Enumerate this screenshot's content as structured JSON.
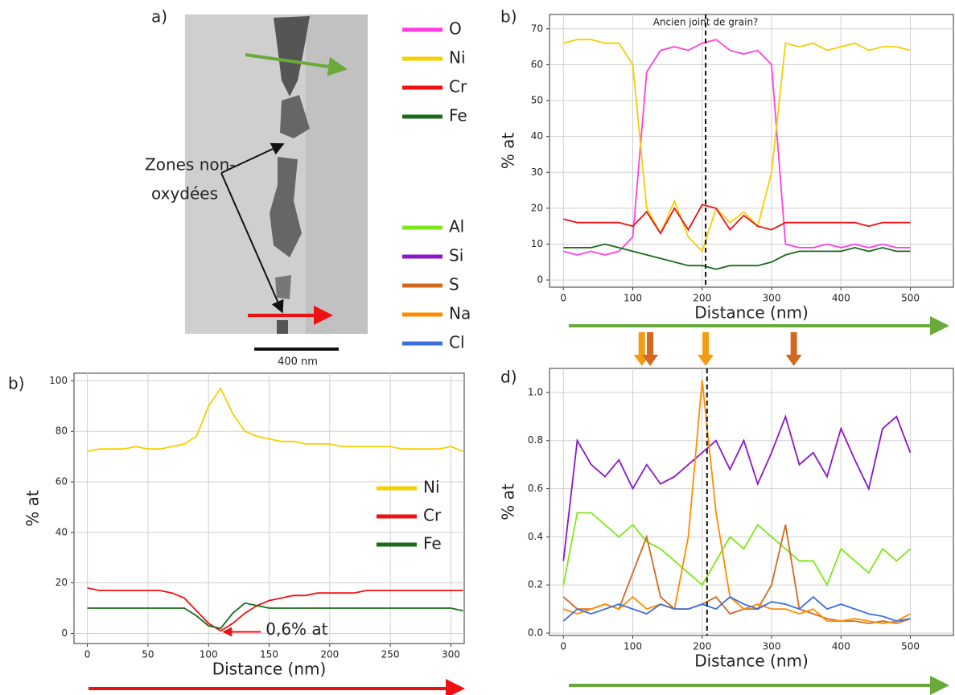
{
  "image_panel": {
    "label": "a)",
    "annotation_line1": "Zones non-",
    "annotation_line2": "oxydées",
    "scale_bar": "400 nm"
  },
  "chart_data": [
    {
      "type": "line",
      "panel": "b)",
      "vline": 205,
      "vline_label": "Ancien joint de grain?",
      "xlabel": "Distance (nm)",
      "ylabel": "% at",
      "x": [
        0,
        20,
        40,
        60,
        80,
        100,
        120,
        140,
        160,
        180,
        200,
        220,
        240,
        260,
        280,
        300,
        320,
        340,
        360,
        380,
        400,
        420,
        440,
        460,
        480,
        500
      ],
      "series": [
        {
          "name": "O",
          "color": "#ff3fe0",
          "values": [
            8,
            7,
            8,
            7,
            8,
            12,
            58,
            64,
            65,
            64,
            66,
            67,
            64,
            63,
            64,
            60,
            10,
            9,
            9,
            10,
            9,
            10,
            9,
            10,
            9,
            9
          ]
        },
        {
          "name": "Ni",
          "color": "#f5cf00",
          "values": [
            66,
            67,
            67,
            66,
            66,
            60,
            20,
            13,
            22,
            12,
            8,
            20,
            16,
            19,
            15,
            30,
            66,
            65,
            66,
            64,
            65,
            66,
            64,
            65,
            65,
            64
          ]
        },
        {
          "name": "Cr",
          "color": "#ee1111",
          "values": [
            17,
            16,
            16,
            16,
            16,
            15,
            19,
            13,
            20,
            14,
            21,
            20,
            14,
            18,
            15,
            14,
            16,
            16,
            16,
            16,
            16,
            16,
            15,
            16,
            16,
            16
          ]
        },
        {
          "name": "Fe",
          "color": "#1a6b1a",
          "values": [
            9,
            9,
            9,
            10,
            9,
            8,
            7,
            6,
            5,
            4,
            4,
            3,
            4,
            4,
            4,
            5,
            7,
            8,
            8,
            8,
            8,
            9,
            8,
            9,
            8,
            8
          ]
        }
      ],
      "xlim": [
        -20,
        562
      ],
      "ylim": [
        -2,
        74
      ],
      "xticks": [
        0,
        100,
        200,
        300,
        400,
        500
      ],
      "yticks": [
        0,
        10,
        20,
        30,
        40,
        50,
        60,
        70
      ],
      "grid": true,
      "legend": "left"
    },
    {
      "type": "line",
      "panel": "b)",
      "xlabel": "Distance (nm)",
      "ylabel": "% at",
      "annotation": {
        "text": "0,6% at",
        "x": 110,
        "y": 0.6,
        "color": "#ee1111"
      },
      "x": [
        0,
        10,
        20,
        30,
        40,
        50,
        60,
        70,
        80,
        90,
        100,
        110,
        120,
        130,
        140,
        150,
        160,
        170,
        180,
        190,
        200,
        210,
        220,
        230,
        240,
        250,
        260,
        270,
        280,
        290,
        300,
        310
      ],
      "series": [
        {
          "name": "Ni",
          "color": "#f5cf00",
          "values": [
            72,
            73,
            73,
            73,
            74,
            73,
            73,
            74,
            75,
            78,
            90,
            97,
            87,
            80,
            78,
            77,
            76,
            76,
            75,
            75,
            75,
            74,
            74,
            74,
            74,
            74,
            73,
            73,
            73,
            73,
            74,
            72
          ]
        },
        {
          "name": "Cr",
          "color": "#ee1111",
          "values": [
            18,
            17,
            17,
            17,
            17,
            17,
            17,
            16,
            14,
            9,
            4,
            1,
            4,
            8,
            11,
            13,
            14,
            15,
            15,
            16,
            16,
            16,
            16,
            17,
            17,
            17,
            17,
            17,
            17,
            17,
            17,
            17
          ]
        },
        {
          "name": "Fe",
          "color": "#1a6b1a",
          "values": [
            10,
            10,
            10,
            10,
            10,
            10,
            10,
            10,
            10,
            7,
            3,
            2,
            8,
            12,
            11,
            10,
            10,
            10,
            10,
            10,
            10,
            10,
            10,
            10,
            10,
            10,
            10,
            10,
            10,
            10,
            10,
            9
          ]
        }
      ],
      "xlim": [
        -11,
        311
      ],
      "ylim": [
        -4,
        103
      ],
      "xticks": [
        0,
        50,
        100,
        150,
        200,
        250,
        300
      ],
      "yticks": [
        0,
        20,
        40,
        60,
        80,
        100
      ],
      "grid": true,
      "legend": "right"
    },
    {
      "type": "line",
      "panel": "d)",
      "vline": 207,
      "xlabel": "Distance (nm)",
      "ylabel": "% at",
      "markers": [
        {
          "x": 113,
          "color": "#f39c12"
        },
        {
          "x": 125,
          "color": "#d2691e"
        },
        {
          "x": 205,
          "color": "#f39c12"
        },
        {
          "x": 332,
          "color": "#d2691e"
        }
      ],
      "x": [
        0,
        20,
        40,
        60,
        80,
        100,
        120,
        140,
        160,
        180,
        200,
        220,
        240,
        260,
        280,
        300,
        320,
        340,
        360,
        380,
        400,
        420,
        440,
        460,
        480,
        500
      ],
      "series": [
        {
          "name": "Al",
          "color": "#7fe81a",
          "values": [
            0.2,
            0.5,
            0.5,
            0.45,
            0.4,
            0.45,
            0.38,
            0.35,
            0.3,
            0.25,
            0.2,
            0.3,
            0.4,
            0.35,
            0.45,
            0.4,
            0.35,
            0.3,
            0.3,
            0.2,
            0.35,
            0.3,
            0.25,
            0.35,
            0.3,
            0.35
          ]
        },
        {
          "name": "Si",
          "color": "#8a17c8",
          "values": [
            0.3,
            0.8,
            0.7,
            0.65,
            0.72,
            0.6,
            0.7,
            0.62,
            0.65,
            0.7,
            0.75,
            0.8,
            0.68,
            0.8,
            0.62,
            0.75,
            0.9,
            0.7,
            0.75,
            0.65,
            0.85,
            0.72,
            0.6,
            0.85,
            0.9,
            0.75
          ]
        },
        {
          "name": "S",
          "color": "#d2691e",
          "values": [
            0.15,
            0.1,
            0.1,
            0.12,
            0.1,
            0.25,
            0.4,
            0.15,
            0.1,
            0.1,
            0.12,
            0.15,
            0.08,
            0.1,
            0.1,
            0.2,
            0.45,
            0.1,
            0.08,
            0.06,
            0.05,
            0.05,
            0.04,
            0.05,
            0.04,
            0.06
          ]
        },
        {
          "name": "Na",
          "color": "#ff8c00",
          "values": [
            0.1,
            0.08,
            0.1,
            0.12,
            0.1,
            0.15,
            0.1,
            0.12,
            0.1,
            0.4,
            1.05,
            0.5,
            0.15,
            0.1,
            0.12,
            0.1,
            0.1,
            0.08,
            0.1,
            0.05,
            0.05,
            0.06,
            0.05,
            0.04,
            0.05,
            0.08
          ]
        },
        {
          "name": "Cl",
          "color": "#3b6fe0",
          "values": [
            0.05,
            0.1,
            0.08,
            0.1,
            0.12,
            0.1,
            0.08,
            0.12,
            0.1,
            0.1,
            0.12,
            0.1,
            0.15,
            0.12,
            0.1,
            0.13,
            0.12,
            0.1,
            0.15,
            0.1,
            0.12,
            0.1,
            0.08,
            0.07,
            0.05,
            0.06
          ]
        }
      ],
      "xlim": [
        -20,
        562
      ],
      "ylim": [
        -0.01,
        1.1
      ],
      "xticks": [
        0,
        100,
        200,
        300,
        400,
        500
      ],
      "yticks": [
        {
          "value": 0,
          "label": "0.0"
        },
        0.2,
        0.4,
        0.6,
        0.8,
        {
          "value": 1,
          "label": "1.0"
        }
      ],
      "grid": true,
      "legend": "left"
    }
  ]
}
